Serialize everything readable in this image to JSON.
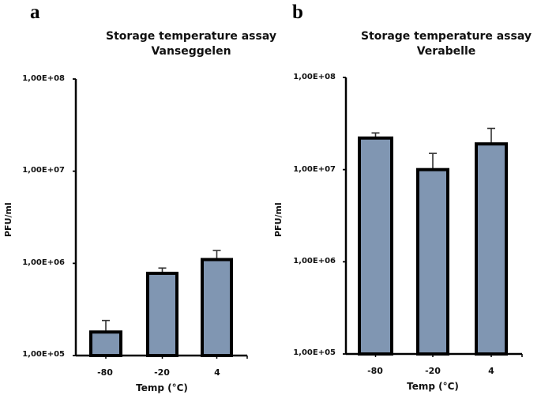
{
  "chart_data": [
    {
      "panel": "a",
      "type": "bar",
      "title": "Storage temperature assay\nVanseggelen",
      "title_lines": [
        "Storage temperature assay",
        "Vanseggelen"
      ],
      "xlabel": "Temp (°C)",
      "ylabel": "PFU/ml",
      "yscale": "log",
      "ylim": [
        100000,
        100000000
      ],
      "yticks": [
        "1,00E+05",
        "1,00E+06",
        "1,00E+07",
        "1,00E+08"
      ],
      "categories": [
        "-80",
        "-20",
        "4"
      ],
      "values": [
        180000,
        780000,
        1100000
      ],
      "error_upper": [
        240000,
        890000,
        1380000
      ],
      "bar_color": "#8096b2",
      "grid": false,
      "legend": null
    },
    {
      "panel": "b",
      "type": "bar",
      "title": "Storage temperature assay\nVerabelle",
      "title_lines": [
        "Storage temperature assay",
        "Verabelle"
      ],
      "xlabel": "Temp (°C)",
      "ylabel": "PFU/ml",
      "yscale": "log",
      "ylim": [
        100000,
        100000000
      ],
      "yticks": [
        "1,00E+05",
        "1,00E+06",
        "1,00E+07",
        "1,00E+08"
      ],
      "categories": [
        "-80",
        "-20",
        "4"
      ],
      "values": [
        22000000,
        10000000,
        19000000
      ],
      "error_upper": [
        25000000,
        15000000,
        28000000
      ],
      "bar_color": "#8096b2",
      "grid": false,
      "legend": null
    }
  ],
  "panels": {
    "a": {
      "letter": "a",
      "title_line1": "Storage temperature assay",
      "title_line2": "Vanseggelen",
      "ylabel": "PFU/ml",
      "xlabel": "Temp (°C)",
      "yticks": {
        "t8": "1,00E+08",
        "t7": "1,00E+07",
        "t6": "1,00E+06",
        "t5": "1,00E+05"
      },
      "xticks": {
        "c0": "-80",
        "c1": "-20",
        "c2": "4"
      }
    },
    "b": {
      "letter": "b",
      "title_line1": "Storage temperature assay",
      "title_line2": "Verabelle",
      "ylabel": "PFU/ml",
      "xlabel": "Temp (°C)",
      "yticks": {
        "t8": "1,00E+08",
        "t7": "1,00E+07",
        "t6": "1,00E+06",
        "t5": "1,00E+05"
      },
      "xticks": {
        "c0": "-80",
        "c1": "-20",
        "c2": "4"
      }
    }
  }
}
